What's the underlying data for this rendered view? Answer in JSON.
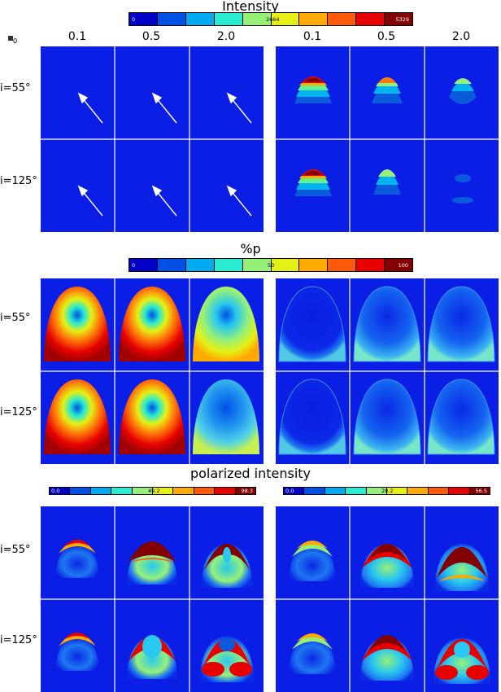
{
  "section_titles": {
    "intensity": "Intensity",
    "percent_p": "%p",
    "polarized_intensity": "polarized intensity"
  },
  "header": {
    "symbol_subscript": "0"
  },
  "column_labels": [
    "0.1",
    "0.5",
    "2.0",
    "0.1",
    "0.5",
    "2.0"
  ],
  "row_labels": [
    "i=55°",
    "i=125°"
  ],
  "colormap": [
    "#0000c8",
    "#0050e6",
    "#00aaf0",
    "#28ebd2",
    "#96f078",
    "#e6f014",
    "#ffaa00",
    "#ff5a0a",
    "#e60000",
    "#820000"
  ],
  "colorbars": {
    "intensity": {
      "min": "0",
      "mid": "2664",
      "max": "5329"
    },
    "percent_p": {
      "min": "0",
      "mid": "50",
      "max": "100"
    },
    "polarized_left": {
      "min": "0.0",
      "mid": "49.2",
      "max": "98.3"
    },
    "polarized_right": {
      "min": "0.0",
      "mid": "28.2",
      "max": "56.5"
    }
  },
  "chart_data": {
    "type": "heatmap",
    "title": "Intensity, %p and polarized intensity image grids",
    "columns": [
      "0.1",
      "0.5",
      "2.0",
      "0.1",
      "0.5",
      "2.0"
    ],
    "rows": [
      "i=55°",
      "i=125°"
    ],
    "panels": [
      {
        "quantity": "Intensity",
        "range": [
          0,
          5329
        ],
        "description": "left group nearly blank with arrows; right group bright arcs"
      },
      {
        "quantity": "%p",
        "range": [
          0,
          100
        ],
        "description": "left group high polarization, right group low"
      },
      {
        "quantity": "polarized intensity (left)",
        "range": [
          0.0,
          98.3
        ]
      },
      {
        "quantity": "polarized intensity (right)",
        "range": [
          0.0,
          56.5
        ]
      }
    ]
  }
}
